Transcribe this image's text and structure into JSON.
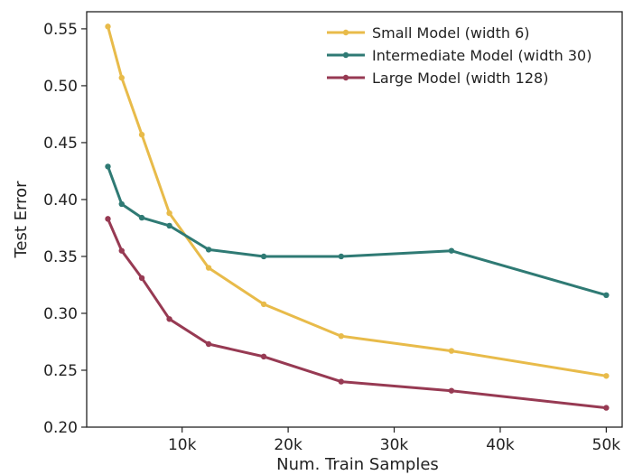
{
  "chart_data": {
    "type": "line",
    "title": "",
    "xlabel": "Num. Train Samples",
    "ylabel": "Test Error",
    "xlim": [
      1000,
      51500
    ],
    "ylim": [
      0.2,
      0.565
    ],
    "xticks": [
      10000,
      20000,
      30000,
      40000,
      50000
    ],
    "xtick_labels": [
      "10k",
      "20k",
      "30k",
      "40k",
      "50k"
    ],
    "yticks": [
      0.2,
      0.25,
      0.3,
      0.35,
      0.4,
      0.45,
      0.5,
      0.55
    ],
    "ytick_labels": [
      "0.20",
      "0.25",
      "0.30",
      "0.35",
      "0.40",
      "0.45",
      "0.50",
      "0.55"
    ],
    "grid": false,
    "legend_position": "top-right",
    "series": [
      {
        "name": "Small Model (width 6)",
        "color": "#e8bb4a",
        "x": [
          3000,
          4300,
          6200,
          8800,
          12500,
          17700,
          25000,
          35400,
          50000
        ],
        "y": [
          0.552,
          0.507,
          0.457,
          0.388,
          0.34,
          0.308,
          0.28,
          0.267,
          0.245
        ]
      },
      {
        "name": "Intermediate Model (width 30)",
        "color": "#2f7a74",
        "x": [
          3000,
          4300,
          6200,
          8800,
          12500,
          17700,
          25000,
          35400,
          50000
        ],
        "y": [
          0.429,
          0.396,
          0.384,
          0.377,
          0.356,
          0.35,
          0.35,
          0.355,
          0.316
        ]
      },
      {
        "name": "Large Model (width 128)",
        "color": "#973a53",
        "x": [
          3000,
          4300,
          6200,
          8800,
          12500,
          17700,
          25000,
          35400,
          50000
        ],
        "y": [
          0.383,
          0.355,
          0.331,
          0.295,
          0.273,
          0.262,
          0.24,
          0.232,
          0.217
        ]
      }
    ]
  }
}
